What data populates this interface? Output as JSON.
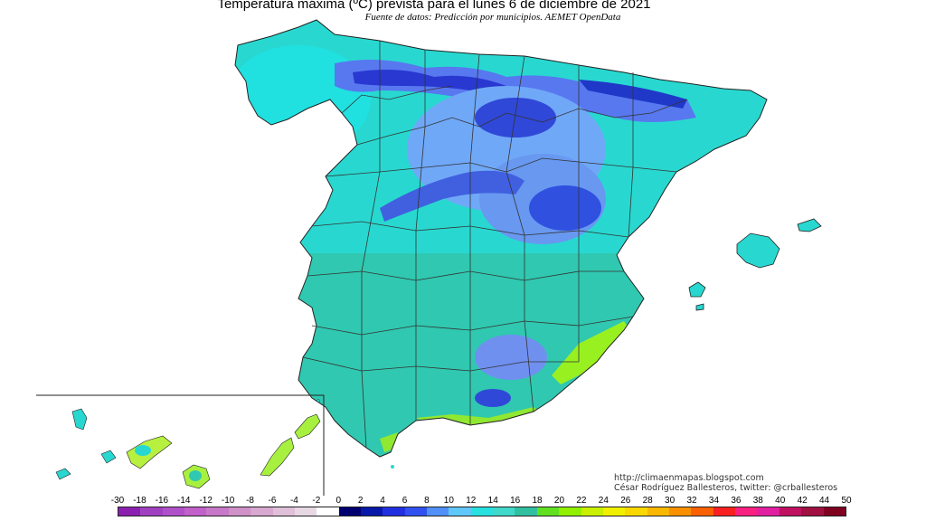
{
  "title": "Temperatura máxima (ºC) prevista para el lunes 6 de diciembre de 2021",
  "subtitle": "Fuente de datos: Predicción por municipios. AEMET OpenData",
  "credits": {
    "line1": "http://climaenmapas.blogspot.com",
    "line2": "César Rodríguez Ballesteros, twitter: @crballesteros"
  },
  "legend": {
    "labels": [
      "-30",
      "-18",
      "-16",
      "-14",
      "-12",
      "-10",
      "-8",
      "-6",
      "-4",
      "-2",
      "0",
      "2",
      "4",
      "6",
      "8",
      "10",
      "12",
      "14",
      "16",
      "18",
      "20",
      "22",
      "24",
      "26",
      "28",
      "30",
      "32",
      "34",
      "36",
      "38",
      "40",
      "42",
      "44",
      "50"
    ],
    "colors": [
      "#8b1fb0",
      "#a040c0",
      "#b050c8",
      "#c060c8",
      "#c878c8",
      "#d090c8",
      "#d8a8d0",
      "#e0c0d8",
      "#e8d8e4",
      "#ffffff",
      "#000070",
      "#0818a8",
      "#2030e0",
      "#3050f0",
      "#5090f8",
      "#60c8f8",
      "#28e0e0",
      "#40d8c8",
      "#30c0a0",
      "#60e020",
      "#90f000",
      "#c8f000",
      "#f0f000",
      "#f8d800",
      "#f8b800",
      "#f89000",
      "#f86000",
      "#f82020",
      "#f82080",
      "#e020a0",
      "#c01060",
      "#a01040",
      "#800020"
    ]
  }
}
